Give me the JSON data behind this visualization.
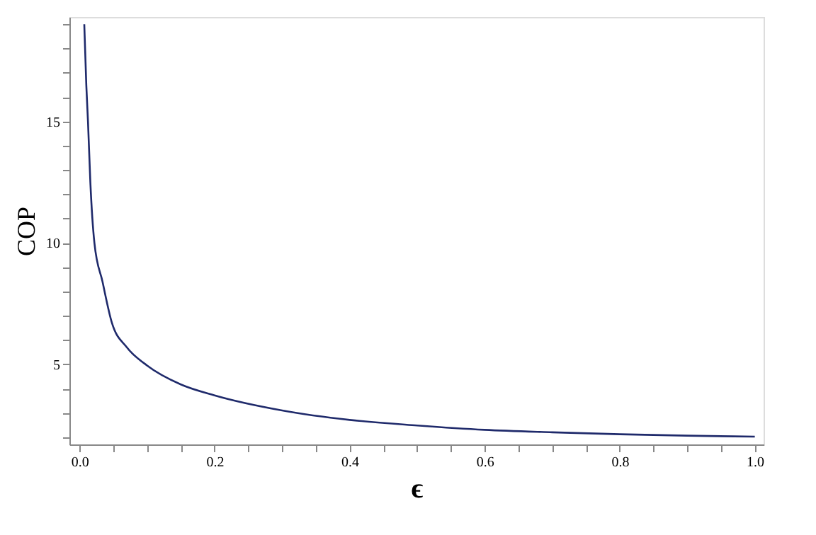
{
  "chart_data": {
    "type": "line",
    "xlabel": "ϵ",
    "ylabel": "COP",
    "x": [
      0.007,
      0.01,
      0.0125,
      0.016,
      0.022,
      0.034,
      0.048,
      0.07,
      0.1,
      0.15,
      0.2,
      0.3,
      0.4,
      0.5,
      0.6,
      0.7,
      0.8,
      0.9,
      1.0
    ],
    "series": [
      {
        "color": "#1f2a6b",
        "values": [
          19,
          16.5,
          15,
          12.5,
          10,
          8.4,
          6.7,
          5.7,
          4.95,
          4.17,
          3.72,
          3.1,
          2.71,
          2.48,
          2.3,
          2.2,
          2.12,
          2.06,
          2.02
        ]
      }
    ],
    "xlim": [
      -0.015,
      1.013
    ],
    "ylim": [
      1.7,
      19.3
    ],
    "xticks": [
      {
        "value": 0,
        "label": "0.0"
      },
      {
        "value": 0.05,
        "label": null
      },
      {
        "value": 0.1,
        "label": null
      },
      {
        "value": 0.15,
        "label": null
      },
      0.2,
      {
        "value": 0.25,
        "label": null
      },
      {
        "value": 0.3,
        "label": null
      },
      {
        "value": 0.35,
        "label": null
      },
      0.4,
      {
        "value": 0.45,
        "label": null
      },
      {
        "value": 0.5,
        "label": null
      },
      {
        "value": 0.55,
        "label": null
      },
      0.6,
      {
        "value": 0.65,
        "label": null
      },
      {
        "value": 0.7,
        "label": null
      },
      {
        "value": 0.75,
        "label": null
      },
      0.8,
      {
        "value": 0.85,
        "label": null
      },
      {
        "value": 0.9,
        "label": null
      },
      {
        "value": 0.95,
        "label": null
      },
      {
        "value": 1,
        "label": "1.0"
      }
    ],
    "yticks": [
      {
        "value": 2,
        "label": null
      },
      {
        "value": 3,
        "label": null
      },
      {
        "value": 4,
        "label": null
      },
      5,
      {
        "value": 6,
        "label": null
      },
      {
        "value": 7,
        "label": null
      },
      {
        "value": 8,
        "label": null
      },
      {
        "value": 9,
        "label": null
      },
      10,
      {
        "value": 11,
        "label": null
      },
      {
        "value": 12,
        "label": null
      },
      {
        "value": 13,
        "label": null
      },
      {
        "value": 14,
        "label": null
      },
      15,
      {
        "value": 16,
        "label": null
      },
      {
        "value": 17,
        "label": null
      },
      {
        "value": 18,
        "label": null
      },
      {
        "value": 19,
        "label": null
      }
    ],
    "grid": false,
    "line_style": "solid",
    "marker": "none"
  }
}
